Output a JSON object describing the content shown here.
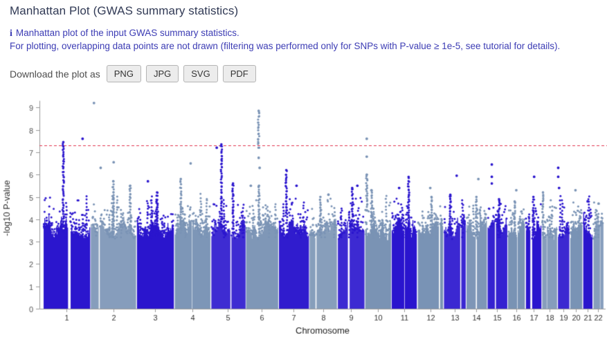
{
  "page": {
    "title": "Manhattan Plot (GWAS summary statistics)",
    "info_icon": "i",
    "info_line1": "Manhattan plot of the input GWAS summary statistics.",
    "info_line2": "For plotting, overlapping data points are not drawn (filtering was performed only for SNPs with P-value ≥ 1e-5, see tutorial for details).",
    "download_label": "Download the plot as",
    "download_buttons": [
      "PNG",
      "JPG",
      "SVG",
      "PDF"
    ]
  },
  "chart_data": {
    "type": "scatter",
    "subtype": "manhattan",
    "title": "",
    "xlabel": "Chromosome",
    "ylabel": "-log10 P-value",
    "ylim": [
      0,
      9.3
    ],
    "yticks": [
      0,
      1,
      2,
      3,
      4,
      5,
      6,
      7,
      8,
      9
    ],
    "grid": false,
    "legend": "none",
    "significance_line": {
      "value": 7.3,
      "color": "#e0304c",
      "style": "dashed"
    },
    "colors": {
      "odd_chromosome": "#2b16ce",
      "even_chromosome": "#7a93b5",
      "axis": "#999999",
      "tick_text": "#555555",
      "axis_text": "#333333",
      "xlabel_text": "#222222"
    },
    "chromosomes": [
      {
        "name": "1",
        "rel_length": 249
      },
      {
        "name": "2",
        "rel_length": 243
      },
      {
        "name": "3",
        "rel_length": 198
      },
      {
        "name": "4",
        "rel_length": 191
      },
      {
        "name": "5",
        "rel_length": 181
      },
      {
        "name": "6",
        "rel_length": 171
      },
      {
        "name": "7",
        "rel_length": 159
      },
      {
        "name": "8",
        "rel_length": 146
      },
      {
        "name": "9",
        "rel_length": 141
      },
      {
        "name": "10",
        "rel_length": 136
      },
      {
        "name": "11",
        "rel_length": 135
      },
      {
        "name": "12",
        "rel_length": 134
      },
      {
        "name": "13",
        "rel_length": 115
      },
      {
        "name": "14",
        "rel_length": 107
      },
      {
        "name": "15",
        "rel_length": 103
      },
      {
        "name": "16",
        "rel_length": 90
      },
      {
        "name": "17",
        "rel_length": 81
      },
      {
        "name": "18",
        "rel_length": 78
      },
      {
        "name": "19",
        "rel_length": 59
      },
      {
        "name": "20",
        "rel_length": 63
      },
      {
        "name": "21",
        "rel_length": 48
      },
      {
        "name": "22",
        "rel_length": 51
      }
    ],
    "base_band": {
      "solid_top_min": 3.0,
      "solid_top_max": 4.0,
      "scatter_top": 5.0
    },
    "gaps": [
      {
        "chr": "1",
        "frac": 0.52,
        "width": 4
      },
      {
        "chr": "9",
        "frac": 0.35,
        "width": 3
      }
    ],
    "peaks": [
      {
        "chr": "1",
        "type": "tower",
        "frac": 0.43,
        "lo": 3.5,
        "hi": 7.45
      },
      {
        "chr": "1",
        "type": "point",
        "frac": 0.85,
        "value": 7.6
      },
      {
        "chr": "2",
        "type": "point",
        "frac": 0.07,
        "value": 9.2
      },
      {
        "chr": "2",
        "type": "point",
        "frac": 0.22,
        "value": 6.3
      },
      {
        "chr": "2",
        "type": "point",
        "frac": 0.51,
        "value": 6.55
      },
      {
        "chr": "2",
        "type": "tower",
        "frac": 0.5,
        "lo": 3.4,
        "hi": 5.7
      },
      {
        "chr": "2",
        "type": "tower",
        "frac": 0.88,
        "lo": 3.4,
        "hi": 5.5
      },
      {
        "chr": "3",
        "type": "point",
        "frac": 0.3,
        "value": 5.7
      },
      {
        "chr": "3",
        "type": "tower",
        "frac": 0.55,
        "lo": 3.3,
        "hi": 5.2
      },
      {
        "chr": "4",
        "type": "point",
        "frac": 0.45,
        "value": 6.5
      },
      {
        "chr": "4",
        "type": "tower",
        "frac": 0.17,
        "lo": 3.4,
        "hi": 5.8
      },
      {
        "chr": "5",
        "type": "point",
        "frac": 0.16,
        "value": 7.2
      },
      {
        "chr": "5",
        "type": "tower",
        "frac": 0.3,
        "lo": 4.0,
        "hi": 7.35
      },
      {
        "chr": "5",
        "type": "tower",
        "frac": 0.65,
        "lo": 3.4,
        "hi": 5.6
      },
      {
        "chr": "6",
        "type": "tower",
        "frac": 0.4,
        "lo": 7.2,
        "hi": 8.85
      },
      {
        "chr": "6",
        "type": "point",
        "frac": 0.4,
        "value": 6.75
      },
      {
        "chr": "6",
        "type": "point",
        "frac": 0.43,
        "value": 6.3
      },
      {
        "chr": "6",
        "type": "tower",
        "frac": 0.41,
        "lo": 3.4,
        "hi": 5.5
      },
      {
        "chr": "6",
        "type": "point",
        "frac": 0.15,
        "value": 5.5
      },
      {
        "chr": "7",
        "type": "tower",
        "frac": 0.25,
        "lo": 4.3,
        "hi": 6.2
      },
      {
        "chr": "7",
        "type": "point",
        "frac": 0.6,
        "value": 5.5
      },
      {
        "chr": "8",
        "type": "tower",
        "frac": 0.4,
        "lo": 3.3,
        "hi": 5.0
      },
      {
        "chr": "8",
        "type": "point",
        "frac": 0.7,
        "value": 5.1
      },
      {
        "chr": "9",
        "type": "tower",
        "frac": 0.55,
        "lo": 3.4,
        "hi": 5.4
      },
      {
        "chr": "9",
        "type": "point",
        "frac": 0.75,
        "value": 5.5
      },
      {
        "chr": "10",
        "type": "point",
        "frac": 0.06,
        "value": 7.6
      },
      {
        "chr": "10",
        "type": "point",
        "frac": 0.06,
        "value": 6.8
      },
      {
        "chr": "10",
        "type": "tower",
        "frac": 0.06,
        "lo": 4.4,
        "hi": 6.0
      },
      {
        "chr": "10",
        "type": "tower",
        "frac": 0.25,
        "lo": 3.4,
        "hi": 5.3
      },
      {
        "chr": "11",
        "type": "tower",
        "frac": 0.68,
        "lo": 3.4,
        "hi": 5.9
      },
      {
        "chr": "11",
        "type": "point",
        "frac": 0.3,
        "value": 5.4
      },
      {
        "chr": "12",
        "type": "point",
        "frac": 0.5,
        "value": 5.4
      },
      {
        "chr": "12",
        "type": "tower",
        "frac": 0.55,
        "lo": 3.3,
        "hi": 5.0
      },
      {
        "chr": "13",
        "type": "point",
        "frac": 0.6,
        "value": 5.95
      },
      {
        "chr": "13",
        "type": "tower",
        "frac": 0.3,
        "lo": 3.3,
        "hi": 5.1
      },
      {
        "chr": "14",
        "type": "point",
        "frac": 0.6,
        "value": 5.8
      },
      {
        "chr": "14",
        "type": "tower",
        "frac": 0.5,
        "lo": 3.3,
        "hi": 5.0
      },
      {
        "chr": "15",
        "type": "point",
        "frac": 0.22,
        "value": 6.45
      },
      {
        "chr": "15",
        "type": "point",
        "frac": 0.22,
        "value": 5.9
      },
      {
        "chr": "15",
        "type": "point",
        "frac": 0.22,
        "value": 5.6
      },
      {
        "chr": "15",
        "type": "tower",
        "frac": 0.6,
        "lo": 3.3,
        "hi": 4.9
      },
      {
        "chr": "16",
        "type": "point",
        "frac": 0.5,
        "value": 5.3
      },
      {
        "chr": "16",
        "type": "tower",
        "frac": 0.4,
        "lo": 3.3,
        "hi": 4.8
      },
      {
        "chr": "17",
        "type": "point",
        "frac": 0.55,
        "value": 5.9
      },
      {
        "chr": "17",
        "type": "tower",
        "frac": 0.5,
        "lo": 3.3,
        "hi": 5.0
      },
      {
        "chr": "18",
        "type": "tower",
        "frac": 0.05,
        "lo": 3.4,
        "hi": 5.2
      },
      {
        "chr": "19",
        "type": "point",
        "frac": 0.02,
        "value": 6.3
      },
      {
        "chr": "19",
        "type": "point",
        "frac": 0.02,
        "value": 5.9
      },
      {
        "chr": "19",
        "type": "point",
        "frac": 0.1,
        "value": 5.4
      },
      {
        "chr": "20",
        "type": "point",
        "frac": 0.45,
        "value": 5.3
      },
      {
        "chr": "21",
        "type": "point",
        "frac": 0.5,
        "value": 4.8
      },
      {
        "chr": "22",
        "type": "point",
        "frac": 0.55,
        "value": 4.7
      },
      {
        "chr": "22",
        "type": "point",
        "frac": 0.8,
        "value": 3.9
      }
    ]
  }
}
